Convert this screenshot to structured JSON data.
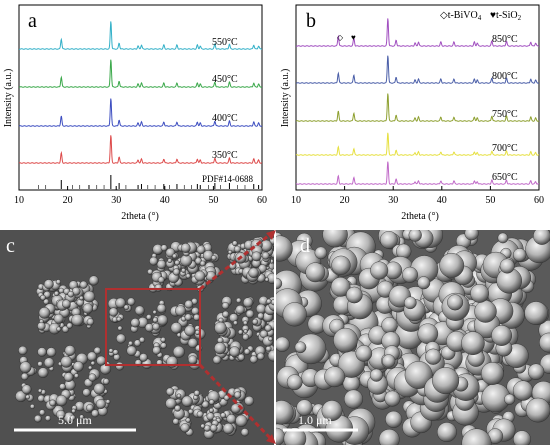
{
  "panels": {
    "a": {
      "letter": "a",
      "ylabel": "Intensity (a.u.)",
      "xlabel": "2theta (°)",
      "xticks": [
        "10",
        "20",
        "30",
        "40",
        "50",
        "60"
      ],
      "series_labels": [
        "550°C",
        "450°C",
        "400°C",
        "350°C"
      ],
      "reference_label": "PDF#14-0688"
    },
    "b": {
      "letter": "b",
      "ylabel": "Intensity (a.u.)",
      "xlabel": "2theta (°)",
      "xticks": [
        "10",
        "20",
        "30",
        "40",
        "50",
        "60"
      ],
      "series_labels": [
        "850°C",
        "800°C",
        "750°C",
        "700°C",
        "650°C"
      ],
      "legend_bivo4_symbol": "◇",
      "legend_bivo4_text": "t-BiVO",
      "legend_bivo4_sub": "4",
      "legend_sio2_symbol": "♥",
      "legend_sio2_text": "t-SiO",
      "legend_sio2_sub": "2"
    },
    "c": {
      "letter": "c",
      "scalebar": "5.0 μm"
    },
    "d": {
      "letter": "d",
      "scalebar": "1.0 μm"
    }
  },
  "chart_data": [
    {
      "type": "line",
      "panel": "a",
      "xlabel": "2theta (°)",
      "ylabel": "Intensity (a.u.)",
      "xlim": [
        10,
        60
      ],
      "peaks_2theta": [
        18.7,
        28.9,
        30.6,
        34.5,
        35.2,
        39.8,
        42.5,
        46.7,
        47.3,
        50.3,
        53.3,
        58.3,
        59.3
      ],
      "series": [
        {
          "name": "550°C",
          "color": "#32b0c8"
        },
        {
          "name": "450°C",
          "color": "#3aa84a"
        },
        {
          "name": "400°C",
          "color": "#3c4dc0"
        },
        {
          "name": "350°C",
          "color": "#dd4a4a"
        }
      ],
      "reference": {
        "name": "PDF#14-0688",
        "lines_2theta": [
          18.7,
          24.4,
          28.9,
          30.6,
          34.5,
          35.2,
          39.8,
          42.5,
          46.7,
          47.3,
          50.3,
          53.3,
          58.3,
          59.3
        ]
      }
    },
    {
      "type": "line",
      "panel": "b",
      "xlabel": "2theta (°)",
      "ylabel": "Intensity (a.u.)",
      "xlim": [
        10,
        60
      ],
      "peaks_2theta": [
        18.7,
        21.9,
        28.9,
        30.6,
        34.5,
        35.2,
        39.8,
        42.5,
        46.7,
        47.3,
        50.3,
        53.3,
        58.3,
        59.3
      ],
      "series": [
        {
          "name": "850°C",
          "color": "#a14fc0"
        },
        {
          "name": "800°C",
          "color": "#4a5ea8"
        },
        {
          "name": "750°C",
          "color": "#8ea030"
        },
        {
          "name": "700°C",
          "color": "#e6e040"
        },
        {
          "name": "650°C",
          "color": "#c069c8"
        }
      ]
    }
  ]
}
